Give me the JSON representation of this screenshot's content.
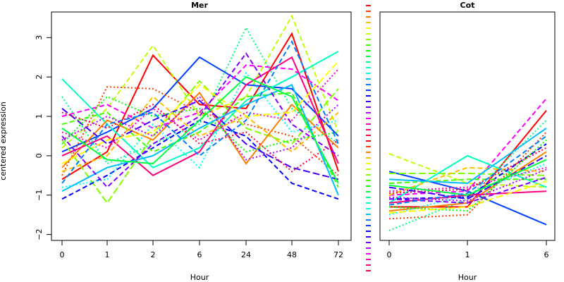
{
  "y_axis_label": "centered expression",
  "colors": [
    "#ff0000",
    "#ff4000",
    "#ff8000",
    "#ffbf00",
    "#ffff00",
    "#bfff00",
    "#80ff00",
    "#40ff00",
    "#00ff00",
    "#00ff40",
    "#00ff80",
    "#00ffbf",
    "#00ffff",
    "#00bfff",
    "#0080ff",
    "#0040ff",
    "#0000ff",
    "#4000ff",
    "#8000ff",
    "#bf00ff",
    "#ff00ff",
    "#ff00bf",
    "#ff0080",
    "#ff0040"
  ],
  "chart_data": [
    {
      "type": "line",
      "title": "Mer",
      "xlabel": "Hour",
      "ylabel": "centered expression",
      "categories": [
        "0",
        "1",
        "2",
        "6",
        "24",
        "48",
        "72"
      ],
      "ylim": [
        -2.15,
        3.65
      ],
      "yticks": [
        -2,
        -1,
        0,
        1,
        2,
        3
      ],
      "grid": false,
      "note": "about 100 overlapping gene profiles; representative series listed",
      "series": [
        {
          "values": [
            -0.6,
            0.1,
            2.55,
            1.3,
            1.2,
            3.1,
            -0.4
          ]
        },
        {
          "values": [
            0.2,
            1.2,
            2.8,
            1.0,
            1.5,
            3.55,
            0.6
          ]
        },
        {
          "values": [
            1.5,
            -0.2,
            0.3,
            0.8,
            3.25,
            1.2,
            0.3
          ]
        },
        {
          "values": [
            0.1,
            0.6,
            1.2,
            2.5,
            1.8,
            1.7,
            0.5
          ]
        },
        {
          "values": [
            1.0,
            1.3,
            0.7,
            1.1,
            2.3,
            2.2,
            1.4
          ]
        },
        {
          "values": [
            -0.5,
            1.75,
            1.7,
            1.1,
            0.8,
            0.5,
            -0.5
          ]
        },
        {
          "values": [
            0.4,
            -1.2,
            0.5,
            1.9,
            0.7,
            0.3,
            1.7
          ]
        },
        {
          "values": [
            1.95,
            0.8,
            -0.3,
            0.2,
            1.4,
            2.0,
            2.65
          ]
        },
        {
          "values": [
            -1.1,
            -0.5,
            0.2,
            0.9,
            0.5,
            -0.7,
            -1.1
          ]
        },
        {
          "values": [
            0.6,
            0.2,
            1.2,
            0.4,
            1.1,
            0.9,
            2.2
          ]
        },
        {
          "values": [
            -0.3,
            0.9,
            0.4,
            1.6,
            -0.2,
            1.3,
            0.2
          ]
        },
        {
          "values": [
            0.8,
            1.1,
            0.1,
            0.6,
            1.5,
            1.6,
            -0.8
          ]
        },
        {
          "values": [
            -0.8,
            -0.6,
            0.8,
            -0.3,
            2.1,
            0.6,
            0.9
          ]
        },
        {
          "values": [
            1.2,
            0.3,
            0.9,
            1.4,
            0.3,
            -0.3,
            -0.6
          ]
        },
        {
          "values": [
            0.0,
            0.5,
            -0.5,
            0.1,
            1.8,
            2.5,
            -0.2
          ]
        },
        {
          "values": [
            -0.4,
            0.0,
            1.5,
            0.5,
            1.0,
            0.1,
            1.1
          ]
        },
        {
          "values": [
            0.3,
            1.5,
            1.0,
            1.2,
            0.1,
            0.4,
            0.6
          ]
        },
        {
          "values": [
            -0.9,
            -0.3,
            0.0,
            0.7,
            1.3,
            1.8,
            -1.0
          ]
        },
        {
          "values": [
            0.5,
            -0.8,
            0.3,
            1.0,
            2.6,
            0.8,
            0.0
          ]
        },
        {
          "values": [
            1.1,
            0.7,
            1.3,
            0.3,
            0.6,
            -0.4,
            0.4
          ]
        },
        {
          "values": [
            -0.2,
            0.4,
            0.6,
            1.8,
            1.0,
            1.1,
            2.4
          ]
        },
        {
          "values": [
            0.7,
            -0.1,
            -0.2,
            0.9,
            2.0,
            1.5,
            -0.7
          ]
        },
        {
          "values": [
            -0.7,
            0.8,
            1.1,
            0.0,
            0.9,
            2.9,
            0.3
          ]
        },
        {
          "values": [
            0.4,
            1.0,
            0.5,
            1.5,
            -0.1,
            0.2,
            1.3
          ]
        }
      ]
    },
    {
      "type": "line",
      "title": "Cot",
      "xlabel": "Hour",
      "ylabel": "",
      "categories": [
        "0",
        "1",
        "6"
      ],
      "ylim": [
        -2.15,
        3.65
      ],
      "grid": false,
      "note": "about 100 overlapping gene profiles; representative series listed",
      "series": [
        {
          "values": [
            -1.3,
            -1.3,
            1.15
          ]
        },
        {
          "values": [
            0.05,
            -0.7,
            -0.8
          ]
        },
        {
          "values": [
            -1.9,
            -1.1,
            0.9
          ]
        },
        {
          "values": [
            -0.4,
            -0.9,
            -1.75
          ]
        },
        {
          "values": [
            -1.0,
            -0.9,
            1.45
          ]
        },
        {
          "values": [
            -1.6,
            -1.5,
            0.6
          ]
        },
        {
          "values": [
            -0.45,
            -0.45,
            -0.5
          ]
        },
        {
          "values": [
            -1.2,
            0.0,
            -0.8
          ]
        },
        {
          "values": [
            -1.1,
            -1.05,
            0.3
          ]
        },
        {
          "values": [
            -0.9,
            -0.8,
            -0.3
          ]
        },
        {
          "values": [
            -1.4,
            -1.2,
            0.1
          ]
        },
        {
          "values": [
            -0.7,
            -0.6,
            -0.6
          ]
        },
        {
          "values": [
            -1.5,
            -1.0,
            -0.2
          ]
        },
        {
          "values": [
            -0.8,
            -1.1,
            0.0
          ]
        },
        {
          "values": [
            -1.2,
            -1.0,
            -0.9
          ]
        },
        {
          "values": [
            -1.0,
            -0.3,
            -0.4
          ]
        },
        {
          "values": [
            -1.3,
            -1.4,
            0.4
          ]
        },
        {
          "values": [
            -0.6,
            -0.7,
            0.7
          ]
        },
        {
          "values": [
            -1.1,
            -1.2,
            -0.55
          ]
        },
        {
          "values": [
            -0.95,
            -0.85,
            0.2
          ]
        },
        {
          "values": [
            -1.45,
            -1.3,
            -0.65
          ]
        },
        {
          "values": [
            -0.75,
            -1.0,
            -0.1
          ]
        },
        {
          "values": [
            -1.25,
            -0.95,
            0.5
          ]
        },
        {
          "values": [
            -1.05,
            -1.15,
            -0.35
          ]
        }
      ]
    }
  ]
}
